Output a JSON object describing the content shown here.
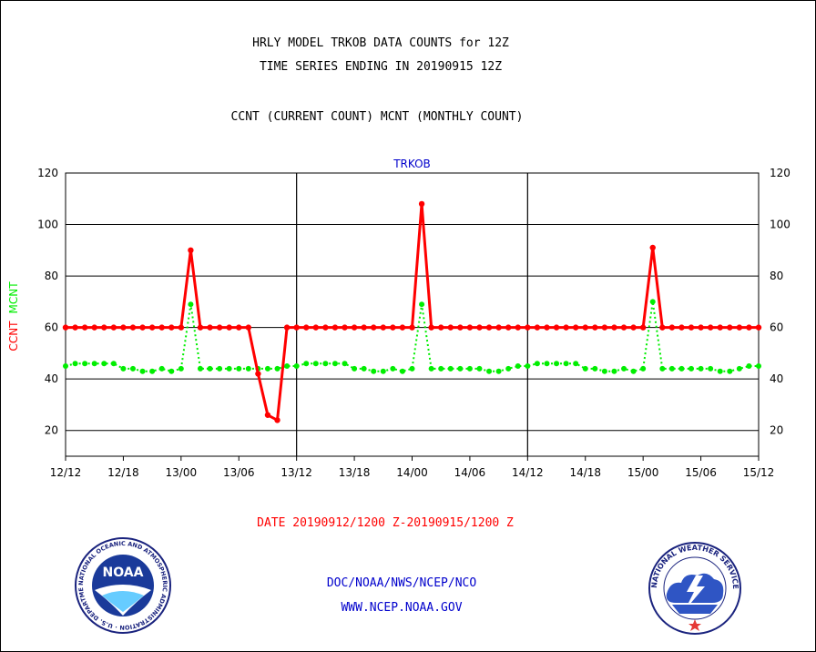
{
  "header": {
    "title_line1": "HRLY MODEL TRKOB DATA COUNTS for 12Z",
    "title_line2": "TIME SERIES ENDING IN 20190915 12Z",
    "subtitle": "CCNT (CURRENT COUNT) MCNT (MONTHLY COUNT)"
  },
  "footer": {
    "agency": "DOC/NOAA/NWS/NCEP/NCO",
    "website": "WWW.NCEP.NOAA.GOV"
  },
  "logos": {
    "noaa_text": "NOAA",
    "noaa_ring": "NATIONAL OCEANIC AND ATMOSPHERIC ADMINISTRATION · U.S. DEPARTMENT OF COMMERCE",
    "nws_ring": "NATIONAL WEATHER SERVICE"
  },
  "colors": {
    "ccnt": "#ff0000",
    "mcnt": "#00ee00",
    "panel_title": "#0000cc",
    "date_range": "#ff0000",
    "footer_text": "#0000cc"
  },
  "chart_data": {
    "type": "line",
    "title": "TRKOB",
    "ylabel": "CCNT MCNT",
    "xlabel": "DATE 20190912/1200 Z-20190915/1200 Z",
    "ylim": [
      10,
      120
    ],
    "yticks": [
      20,
      40,
      60,
      80,
      100,
      120
    ],
    "x_start_hours": 0,
    "x_end_hours": 72,
    "xticks": [
      "12/12",
      "12/18",
      "13/00",
      "13/06",
      "13/12",
      "13/18",
      "14/00",
      "14/06",
      "14/12",
      "14/18",
      "15/00",
      "15/06",
      "15/12"
    ],
    "xtick_hours": [
      0,
      6,
      12,
      18,
      24,
      30,
      36,
      42,
      48,
      54,
      60,
      66,
      72
    ],
    "panel_dividers_hours": [
      24,
      48
    ],
    "grid": true,
    "series": [
      {
        "name": "CCNT",
        "color": "#ff0000",
        "values": [
          60,
          60,
          60,
          60,
          60,
          60,
          60,
          60,
          60,
          60,
          60,
          60,
          60,
          90,
          60,
          60,
          60,
          60,
          60,
          60,
          42,
          26,
          24,
          60,
          60,
          60,
          60,
          60,
          60,
          60,
          60,
          60,
          60,
          60,
          60,
          60,
          60,
          108,
          60,
          60,
          60,
          60,
          60,
          60,
          60,
          60,
          60,
          60,
          60,
          60,
          60,
          60,
          60,
          60,
          60,
          60,
          60,
          60,
          60,
          60,
          60,
          91,
          60,
          60,
          60,
          60,
          60,
          60,
          60,
          60,
          60,
          60,
          60
        ]
      },
      {
        "name": "MCNT",
        "color": "#00ee00",
        "values": [
          45,
          46,
          46,
          46,
          46,
          46,
          44,
          44,
          43,
          43,
          44,
          43,
          44,
          69,
          44,
          44,
          44,
          44,
          44,
          44,
          44,
          44,
          44,
          45,
          45,
          46,
          46,
          46,
          46,
          46,
          44,
          44,
          43,
          43,
          44,
          43,
          44,
          69,
          44,
          44,
          44,
          44,
          44,
          44,
          43,
          43,
          44,
          45,
          45,
          46,
          46,
          46,
          46,
          46,
          44,
          44,
          43,
          43,
          44,
          43,
          44,
          70,
          44,
          44,
          44,
          44,
          44,
          44,
          43,
          43,
          44,
          45,
          45
        ]
      }
    ]
  }
}
